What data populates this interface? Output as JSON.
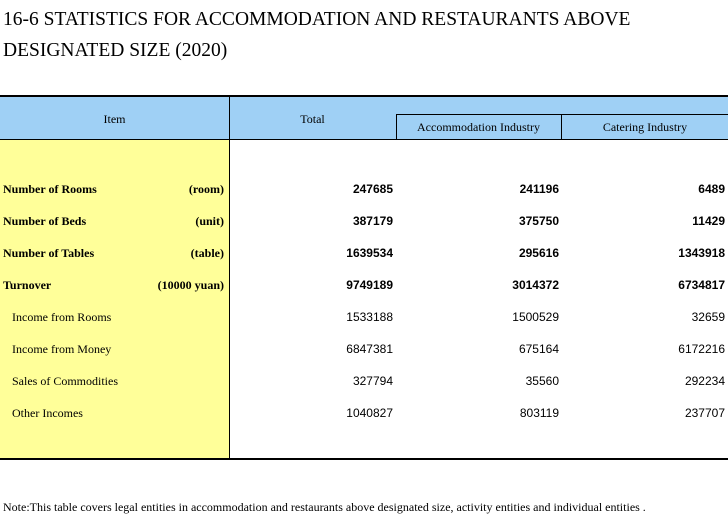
{
  "title": {
    "line1": "16-6  STATISTICS FOR ACCOMMODATION AND RESTAURANTS ABOVE",
    "line2": "DESIGNATED SIZE (2020)"
  },
  "header": {
    "item": "Item",
    "total": "Total",
    "accommodation": "Accommodation Industry",
    "catering": "Catering Industry"
  },
  "rows": [
    {
      "label": "Number of Rooms",
      "unit": "(room)",
      "total": "247685",
      "accommodation": "241196",
      "catering": "6489",
      "bold": true
    },
    {
      "label": "Number of Beds",
      "unit": "(unit)",
      "total": "387179",
      "accommodation": "375750",
      "catering": "11429",
      "bold": true
    },
    {
      "label": "Number of Tables",
      "unit": "(table)",
      "total": "1639534",
      "accommodation": "295616",
      "catering": "1343918",
      "bold": true
    },
    {
      "label": "Turnover",
      "unit": "(10000 yuan)",
      "total": "9749189",
      "accommodation": "3014372",
      "catering": "6734817",
      "bold": true
    },
    {
      "label": "Income from Rooms",
      "unit": "",
      "total": "1533188",
      "accommodation": "1500529",
      "catering": "32659",
      "bold": false
    },
    {
      "label": "Income from  Money",
      "unit": "",
      "total": "6847381",
      "accommodation": "675164",
      "catering": "6172216",
      "bold": false
    },
    {
      "label": "Sales of Commodities",
      "unit": "",
      "total": "327794",
      "accommodation": "35560",
      "catering": "292234",
      "bold": false
    },
    {
      "label": "Other Incomes",
      "unit": "",
      "total": "1040827",
      "accommodation": "803119",
      "catering": "237707",
      "bold": false
    }
  ],
  "note": "Note:This table covers legal entities in accommodation and restaurants above designated size, activity entities and individual entities ."
}
